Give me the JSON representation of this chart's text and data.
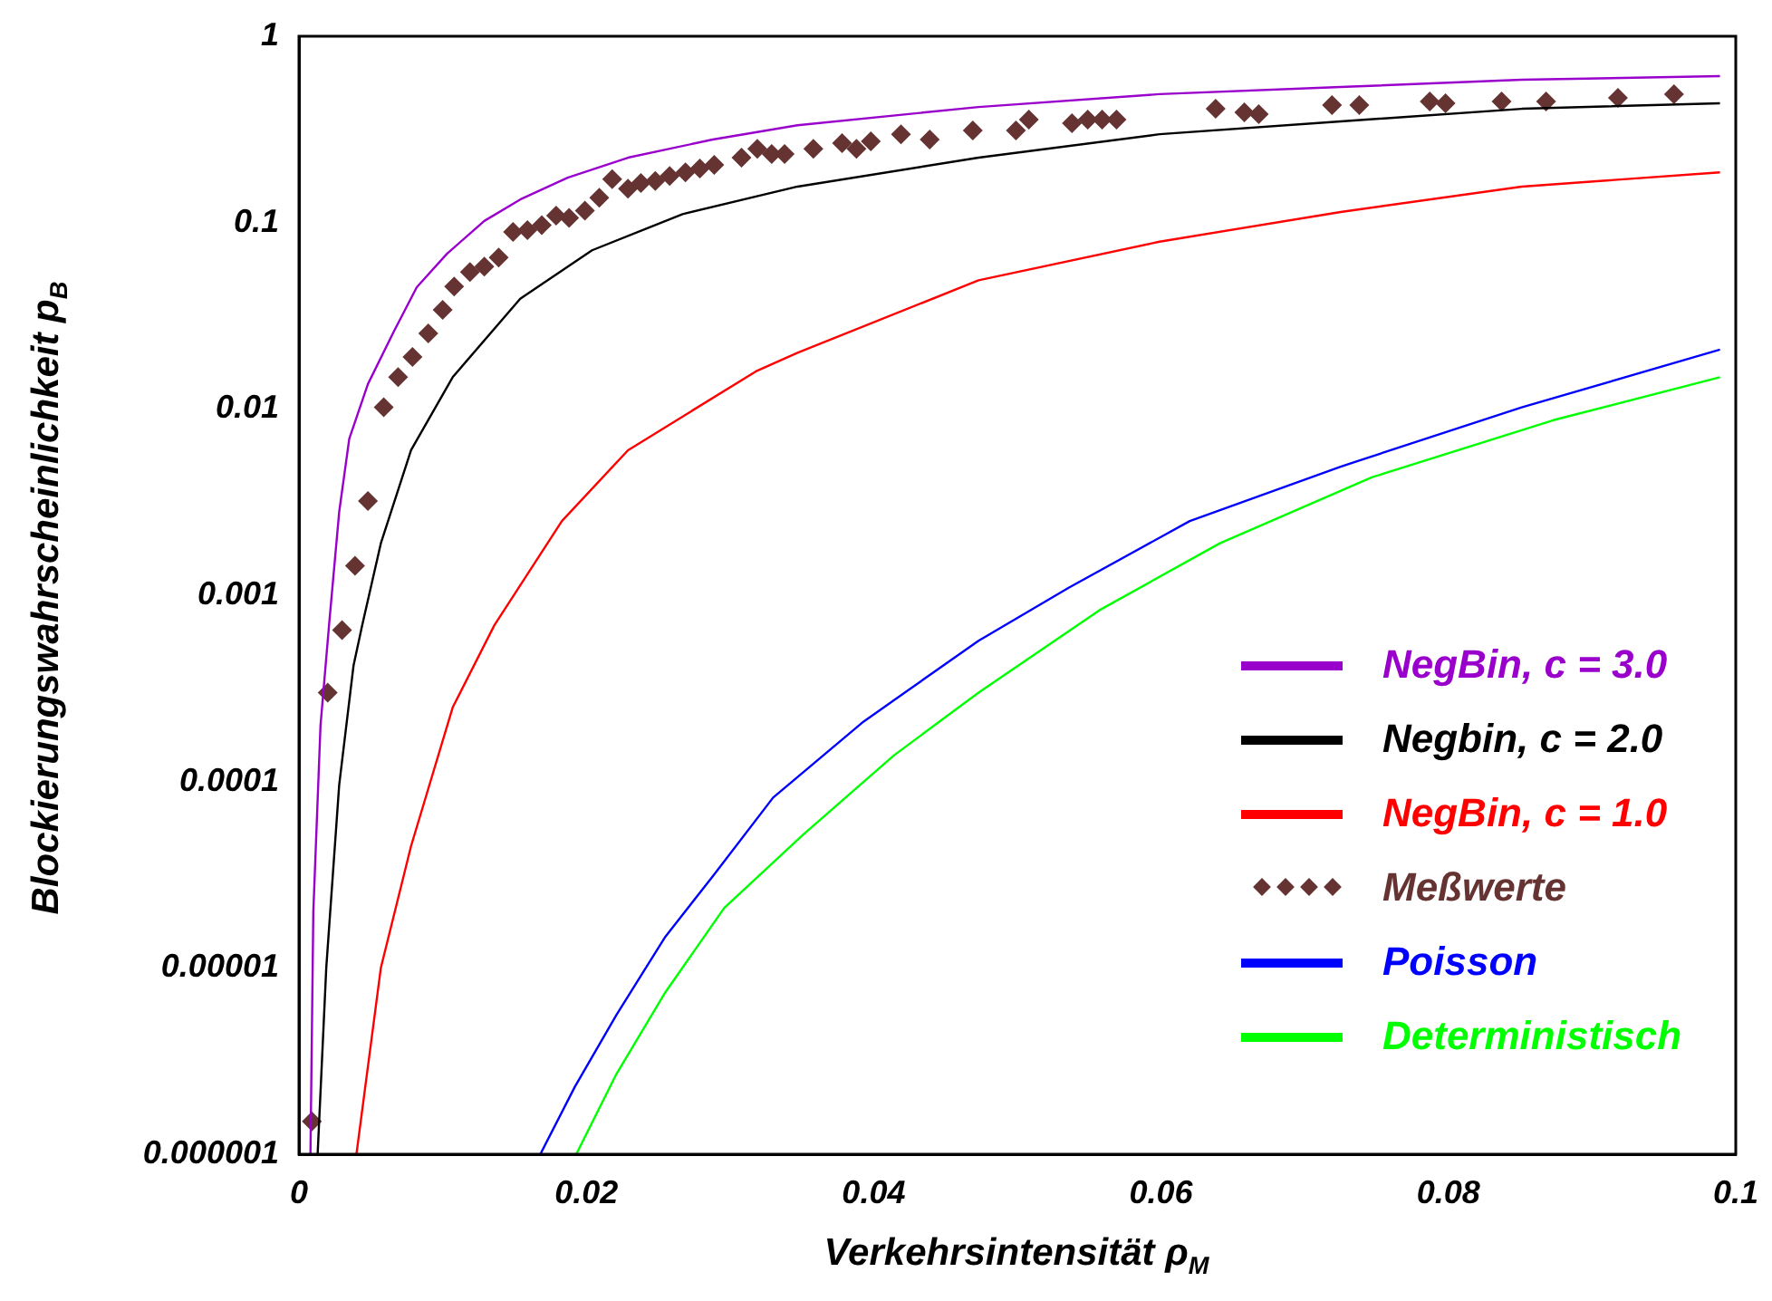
{
  "chart_data": {
    "type": "line",
    "xlabel": "Verkehrsintensität ρ$_{M}$",
    "ylabel": "Blockierungswahrscheinlichkeit p$_{B}$",
    "log": "y",
    "xlim": [
      0,
      0.1
    ],
    "xticks": [
      0,
      0.02,
      0.04,
      0.06,
      0.08,
      0.1
    ],
    "ylim": [
      1e-06,
      1
    ],
    "yticks": [
      1,
      0.1,
      0.01,
      0.001,
      0.0001,
      {
        "value": 1e-05,
        "label": "0.00001"
      },
      {
        "value": 1e-06,
        "label": "0.000001"
      }
    ],
    "legend": "bottom right",
    "series": [
      {
        "name": "NegBin, c = 3.0",
        "marker": "none",
        "color": "#9900cc",
        "x": [
          0.0008,
          0.001,
          0.0015,
          0.0021,
          0.0028,
          0.0035,
          0.0048,
          0.0066,
          0.0082,
          0.0103,
          0.0129,
          0.0154,
          0.0187,
          0.0229,
          0.0288,
          0.0347,
          0.0473,
          0.0599,
          0.0725,
          0.0851,
          0.0989
        ],
        "values": [
          1e-06,
          2e-05,
          0.0002,
          0.0007,
          0.0028,
          0.0069,
          0.0136,
          0.026,
          0.045,
          0.068,
          0.102,
          0.133,
          0.174,
          0.223,
          0.279,
          0.333,
          0.417,
          0.489,
          0.534,
          0.584,
          0.611
        ]
      },
      {
        "name": "Negbin, c = 2.0",
        "marker": "none",
        "color": "#000000",
        "x": [
          0.0013,
          0.0019,
          0.0028,
          0.0038,
          0.0044,
          0.0057,
          0.0078,
          0.0107,
          0.0154,
          0.0204,
          0.0267,
          0.0347,
          0.0473,
          0.0599,
          0.0725,
          0.0851,
          0.0989
        ],
        "values": [
          1e-06,
          1e-05,
          9.6e-05,
          0.00042,
          0.00069,
          0.0019,
          0.006,
          0.0148,
          0.039,
          0.071,
          0.111,
          0.156,
          0.223,
          0.298,
          0.349,
          0.408,
          0.437
        ]
      },
      {
        "name": "NegBin, c = 1.0",
        "marker": "none",
        "color": "#ff0000",
        "x": [
          0.004,
          0.0057,
          0.0078,
          0.0107,
          0.0136,
          0.0183,
          0.0229,
          0.0318,
          0.0347,
          0.0473,
          0.0599,
          0.0725,
          0.0851,
          0.0989
        ],
        "values": [
          1e-06,
          1e-05,
          4.5e-05,
          0.00025,
          0.00069,
          0.0025,
          0.006,
          0.0159,
          0.02,
          0.049,
          0.079,
          0.114,
          0.156,
          0.186
        ]
      },
      {
        "name": "Meßwerte",
        "type": "scatter",
        "marker": "diamond",
        "color": "#663333",
        "x": [
          0.0009,
          0.002,
          0.003,
          0.0039,
          0.0048,
          0.0059,
          0.0069,
          0.0079,
          0.009,
          0.01,
          0.0108,
          0.0119,
          0.0129,
          0.0139,
          0.0149,
          0.0159,
          0.0169,
          0.0179,
          0.0188,
          0.0199,
          0.0209,
          0.0218,
          0.0229,
          0.0238,
          0.0248,
          0.0258,
          0.0269,
          0.0279,
          0.0289,
          0.0308,
          0.0319,
          0.0329,
          0.0338,
          0.0358,
          0.0378,
          0.0388,
          0.0398,
          0.0419,
          0.0439,
          0.0469,
          0.0499,
          0.0508,
          0.0538,
          0.0549,
          0.0559,
          0.0569,
          0.0638,
          0.0658,
          0.0668,
          0.0719,
          0.0738,
          0.0787,
          0.0798,
          0.0837,
          0.0868,
          0.0918,
          0.0957
        ],
        "values": [
          1.5e-06,
          0.0003,
          0.00065,
          0.00144,
          0.0032,
          0.0102,
          0.0148,
          0.019,
          0.0254,
          0.034,
          0.0454,
          0.0543,
          0.058,
          0.065,
          0.089,
          0.091,
          0.097,
          0.109,
          0.106,
          0.116,
          0.136,
          0.171,
          0.152,
          0.163,
          0.167,
          0.178,
          0.186,
          0.195,
          0.204,
          0.223,
          0.249,
          0.233,
          0.233,
          0.249,
          0.267,
          0.249,
          0.273,
          0.298,
          0.279,
          0.312,
          0.312,
          0.357,
          0.341,
          0.357,
          0.357,
          0.357,
          0.408,
          0.39,
          0.382,
          0.427,
          0.427,
          0.447,
          0.437,
          0.447,
          0.447,
          0.467,
          0.489
        ]
      },
      {
        "name": "Poisson",
        "marker": "none",
        "color": "#0000ff",
        "x": [
          0.0168,
          0.0192,
          0.0221,
          0.0255,
          0.0288,
          0.033,
          0.0393,
          0.0473,
          0.0536,
          0.062,
          0.0725,
          0.0851,
          0.0989
        ],
        "values": [
          1e-06,
          2.3e-06,
          5.6e-06,
          1.47e-05,
          3.1e-05,
          8.2e-05,
          0.00021,
          0.00057,
          0.0011,
          0.0025,
          0.0049,
          0.0102,
          0.0208
        ]
      },
      {
        "name": "Deterministisch",
        "marker": "none",
        "color": "#00ff00",
        "x": [
          0.0193,
          0.0221,
          0.0255,
          0.0296,
          0.0351,
          0.0414,
          0.0473,
          0.0557,
          0.0641,
          0.0747,
          0.0873,
          0.0989
        ],
        "values": [
          1e-06,
          2.7e-06,
          7.4e-06,
          2.1e-05,
          5.2e-05,
          0.000138,
          0.0003,
          0.00083,
          0.0019,
          0.0043,
          0.0087,
          0.0148
        ]
      }
    ]
  }
}
